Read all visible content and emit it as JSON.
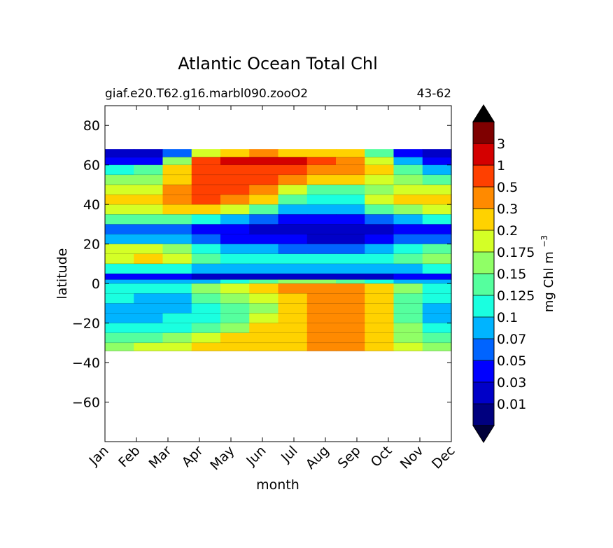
{
  "chart_data": {
    "type": "contour",
    "title": "Atlantic Ocean Total Chl",
    "subtitle_left": "giaf.e20.T62.g16.marbl090.zooO2",
    "subtitle_right": "43-62",
    "xlabel": "month",
    "ylabel": "latitude",
    "x_ticks": [
      "Jan",
      "Feb",
      "Mar",
      "Apr",
      "May",
      "Jun",
      "Jul",
      "Aug",
      "Sep",
      "Oct",
      "Nov",
      "Dec"
    ],
    "xlim": [
      0,
      11
    ],
    "ylim": [
      -80,
      90
    ],
    "y_ticks": [
      80,
      60,
      40,
      20,
      0,
      -20,
      -40,
      -60
    ],
    "y_tick_labels": [
      "80",
      "60",
      "40",
      "20",
      "0",
      "−20",
      "−40",
      "−60"
    ],
    "data_lat_range": [
      -34,
      68
    ],
    "colorbar": {
      "label": "mg Chl m",
      "label_exponent": "−3",
      "extend": "both",
      "levels": [
        "0.01",
        "0.03",
        "0.05",
        "0.07",
        "0.1",
        "0.125",
        "0.15",
        "0.175",
        "0.2",
        "0.3",
        "0.5",
        "1",
        "3"
      ],
      "colors": [
        "#00007f",
        "#0000c8",
        "#0000ff",
        "#0064ff",
        "#00b4ff",
        "#1affe0",
        "#55ff9e",
        "#90ff66",
        "#d4ff26",
        "#ffd200",
        "#ff8a00",
        "#ff4000",
        "#d40000",
        "#7f0000"
      ],
      "extend_low_color": "#00003a",
      "extend_high_color": "#000000"
    },
    "bands": [
      {
        "lat": [
          64,
          68
        ],
        "level": [
          1,
          1,
          3,
          8,
          9,
          10,
          9,
          9,
          9,
          6,
          2,
          1
        ]
      },
      {
        "lat": [
          60,
          64
        ],
        "level": [
          2,
          2,
          7,
          11,
          12,
          12,
          12,
          11,
          10,
          8,
          4,
          2
        ]
      },
      {
        "lat": [
          55,
          60
        ],
        "level": [
          5,
          6,
          9,
          11,
          11,
          11,
          11,
          10,
          10,
          9,
          6,
          4
        ]
      },
      {
        "lat": [
          50,
          55
        ],
        "level": [
          7,
          7,
          9,
          11,
          11,
          11,
          10,
          9,
          9,
          8,
          7,
          6
        ]
      },
      {
        "lat": [
          45,
          50
        ],
        "level": [
          8,
          8,
          10,
          11,
          11,
          10,
          8,
          6,
          6,
          7,
          8,
          8
        ]
      },
      {
        "lat": [
          40,
          45
        ],
        "level": [
          9,
          9,
          10,
          11,
          10,
          9,
          6,
          5,
          5,
          8,
          9,
          9
        ]
      },
      {
        "lat": [
          35,
          40
        ],
        "level": [
          8,
          8,
          9,
          9,
          8,
          6,
          4,
          4,
          4,
          6,
          7,
          8
        ]
      },
      {
        "lat": [
          30,
          35
        ],
        "level": [
          6,
          6,
          6,
          5,
          4,
          3,
          2,
          2,
          2,
          3,
          4,
          5
        ]
      },
      {
        "lat": [
          25,
          30
        ],
        "level": [
          3,
          3,
          3,
          2,
          2,
          1,
          1,
          1,
          1,
          1,
          2,
          2
        ]
      },
      {
        "lat": [
          20,
          25
        ],
        "level": [
          4,
          4,
          4,
          3,
          2,
          2,
          2,
          1,
          1,
          2,
          3,
          3
        ]
      },
      {
        "lat": [
          15,
          20
        ],
        "level": [
          8,
          8,
          7,
          5,
          4,
          4,
          3,
          3,
          3,
          4,
          5,
          6
        ]
      },
      {
        "lat": [
          10,
          15
        ],
        "level": [
          8,
          9,
          8,
          6,
          5,
          5,
          5,
          5,
          5,
          5,
          6,
          7
        ]
      },
      {
        "lat": [
          5,
          10
        ],
        "level": [
          5,
          5,
          5,
          4,
          4,
          4,
          4,
          4,
          4,
          4,
          4,
          5
        ]
      },
      {
        "lat": [
          2,
          5
        ],
        "level": [
          2,
          2,
          2,
          1,
          1,
          1,
          1,
          1,
          1,
          1,
          2,
          2
        ]
      },
      {
        "lat": [
          0,
          2
        ],
        "level": [
          4,
          4,
          4,
          4,
          5,
          6,
          7,
          7,
          6,
          5,
          4,
          4
        ]
      },
      {
        "lat": [
          -5,
          0
        ],
        "level": [
          5,
          5,
          5,
          7,
          8,
          9,
          10,
          10,
          10,
          9,
          7,
          5
        ]
      },
      {
        "lat": [
          -10,
          -5
        ],
        "level": [
          5,
          4,
          4,
          6,
          7,
          8,
          9,
          10,
          10,
          9,
          6,
          5
        ]
      },
      {
        "lat": [
          -15,
          -10
        ],
        "level": [
          4,
          4,
          4,
          5,
          6,
          7,
          9,
          10,
          10,
          9,
          6,
          4
        ]
      },
      {
        "lat": [
          -20,
          -15
        ],
        "level": [
          4,
          4,
          5,
          5,
          6,
          8,
          9,
          10,
          10,
          9,
          6,
          4
        ]
      },
      {
        "lat": [
          -25,
          -20
        ],
        "level": [
          5,
          5,
          5,
          6,
          7,
          9,
          9,
          10,
          10,
          9,
          7,
          5
        ]
      },
      {
        "lat": [
          -30,
          -25
        ],
        "level": [
          6,
          6,
          7,
          8,
          9,
          9,
          9,
          10,
          10,
          9,
          7,
          6
        ]
      },
      {
        "lat": [
          -34,
          -30
        ],
        "level": [
          7,
          8,
          8,
          9,
          9,
          9,
          9,
          10,
          10,
          9,
          8,
          7
        ]
      }
    ]
  }
}
